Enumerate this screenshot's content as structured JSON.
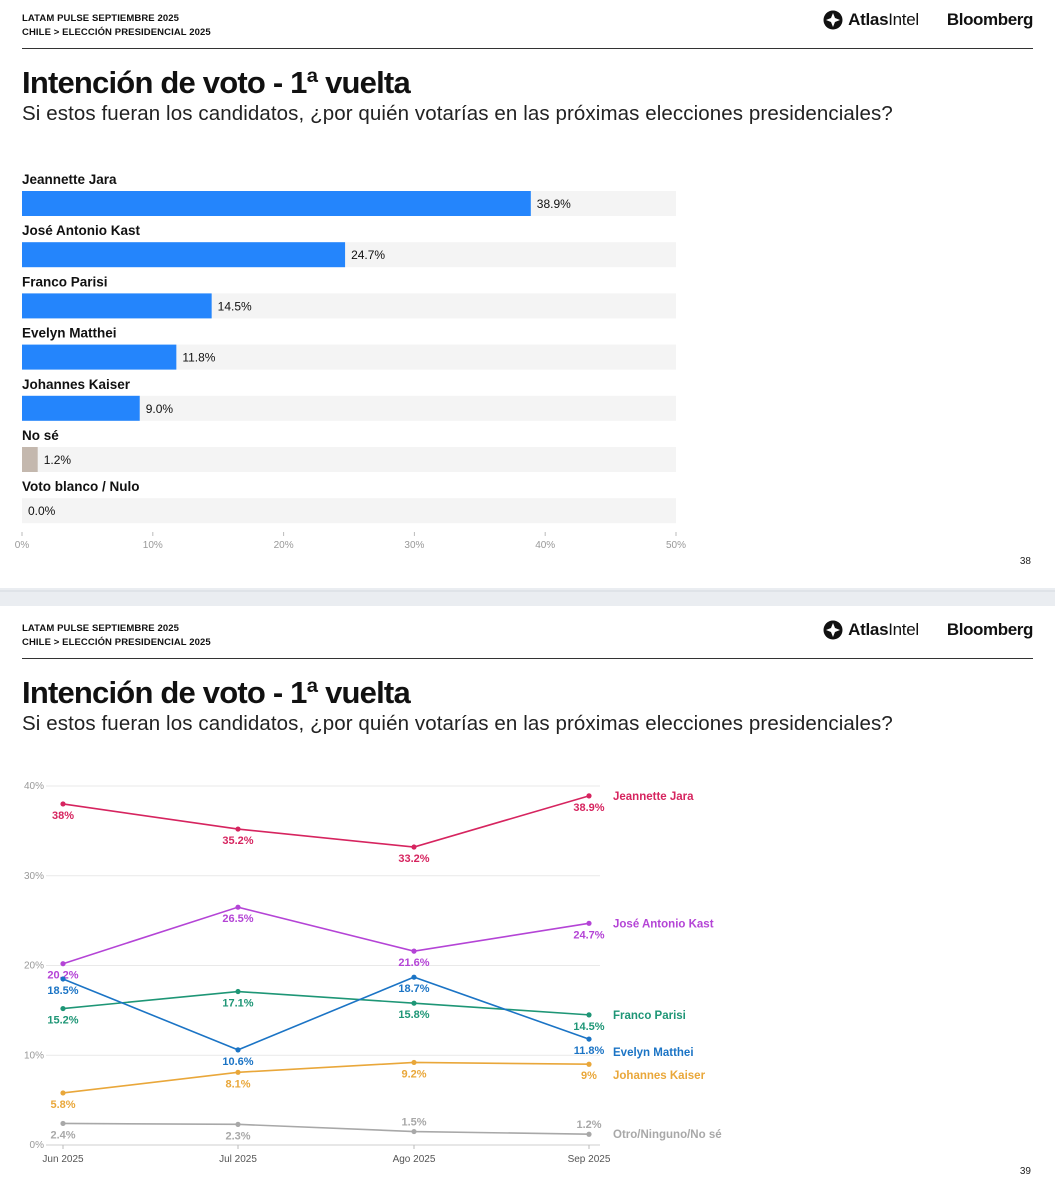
{
  "slides": [
    {
      "header_line1": "LATAM PULSE SEPTIEMBRE 2025",
      "header_line2": "CHILE > ELECCIÓN PRESIDENCIAL 2025",
      "brand_atlas_bold": "Atlas",
      "brand_atlas_light": "Intel",
      "brand_bloomberg": "Bloomberg",
      "title": "Intención de voto - 1ª vuelta",
      "subtitle": "Si estos fueran los candidatos, ¿por quién votarías en las próximas elecciones presidenciales?",
      "page_number": "38"
    },
    {
      "header_line1": "LATAM PULSE SEPTIEMBRE 2025",
      "header_line2": "CHILE > ELECCIÓN PRESIDENCIAL 2025",
      "brand_atlas_bold": "Atlas",
      "brand_atlas_light": "Intel",
      "brand_bloomberg": "Bloomberg",
      "title": "Intención de voto - 1ª vuelta",
      "subtitle": "Si estos fueran los candidatos, ¿por quién votarías en las próximas elecciones presidenciales?",
      "page_number": "39"
    }
  ],
  "chart_data": [
    {
      "type": "bar",
      "orientation": "horizontal",
      "categories": [
        "Jeannette Jara",
        "José Antonio Kast",
        "Franco Parisi",
        "Evelyn Matthei",
        "Johannes Kaiser",
        "No sé",
        "Voto blanco / Nulo"
      ],
      "values": [
        38.9,
        24.7,
        14.5,
        11.8,
        9.0,
        1.2,
        0.0
      ],
      "value_labels": [
        "38.9%",
        "24.7%",
        "14.5%",
        "11.8%",
        "9.0%",
        "1.2%",
        "0.0%"
      ],
      "colors": [
        "#2485fc",
        "#2485fc",
        "#2485fc",
        "#2485fc",
        "#2485fc",
        "#c4b8ae",
        "#c4b8ae"
      ],
      "xlim": [
        0,
        50
      ],
      "xticks": [
        0,
        10,
        20,
        30,
        40,
        50
      ],
      "xtick_labels": [
        "0%",
        "10%",
        "20%",
        "30%",
        "40%",
        "50%"
      ],
      "track_color": "#f4f4f4"
    },
    {
      "type": "line",
      "x": [
        "Jun 2025",
        "Jul 2025",
        "Ago 2025",
        "Sep 2025"
      ],
      "ylim": [
        0,
        40
      ],
      "yticks": [
        0,
        10,
        20,
        30,
        40
      ],
      "ytick_labels": [
        "0%",
        "10%",
        "20%",
        "30%",
        "40%"
      ],
      "series": [
        {
          "name": "Jeannette Jara",
          "color": "#d6245f",
          "values": [
            38,
            35.2,
            33.2,
            38.9
          ],
          "labels": [
            "38%",
            "35.2%",
            "33.2%",
            "38.9%"
          ],
          "label_pos": [
            "below",
            "below",
            "below",
            "below"
          ]
        },
        {
          "name": "José Antonio Kast",
          "color": "#b444d6",
          "values": [
            20.2,
            26.5,
            21.6,
            24.7
          ],
          "labels": [
            "20.2%",
            "26.5%",
            "21.6%",
            "24.7%"
          ],
          "label_pos": [
            "below",
            "below",
            "below",
            "below"
          ]
        },
        {
          "name": "Franco Parisi",
          "color": "#1e9676",
          "values": [
            15.2,
            17.1,
            15.8,
            14.5
          ],
          "labels": [
            "15.2%",
            "17.1%",
            "15.8%",
            "14.5%"
          ],
          "label_pos": [
            "below",
            "below",
            "below",
            "below"
          ]
        },
        {
          "name": "Evelyn Matthei",
          "color": "#1b74c5",
          "values": [
            18.5,
            10.6,
            18.7,
            11.8
          ],
          "labels": [
            "18.5%",
            "10.6%",
            "18.7%",
            "11.8%"
          ],
          "label_pos": [
            "below",
            "below",
            "below",
            "below"
          ]
        },
        {
          "name": "Johannes Kaiser",
          "color": "#e9a73a",
          "values": [
            5.8,
            8.1,
            9.2,
            9
          ],
          "labels": [
            "5.8%",
            "8.1%",
            "9.2%",
            "9%"
          ],
          "label_pos": [
            "below",
            "below",
            "below",
            "below"
          ]
        },
        {
          "name": "Otro/Ninguno/No sé",
          "color": "#a8a8a8",
          "values": [
            2.4,
            2.3,
            1.5,
            1.2
          ],
          "labels": [
            "2.4%",
            "2.3%",
            "1.5%",
            "1.2%"
          ],
          "label_pos": [
            "below",
            "below",
            "above",
            "above"
          ]
        }
      ]
    }
  ]
}
